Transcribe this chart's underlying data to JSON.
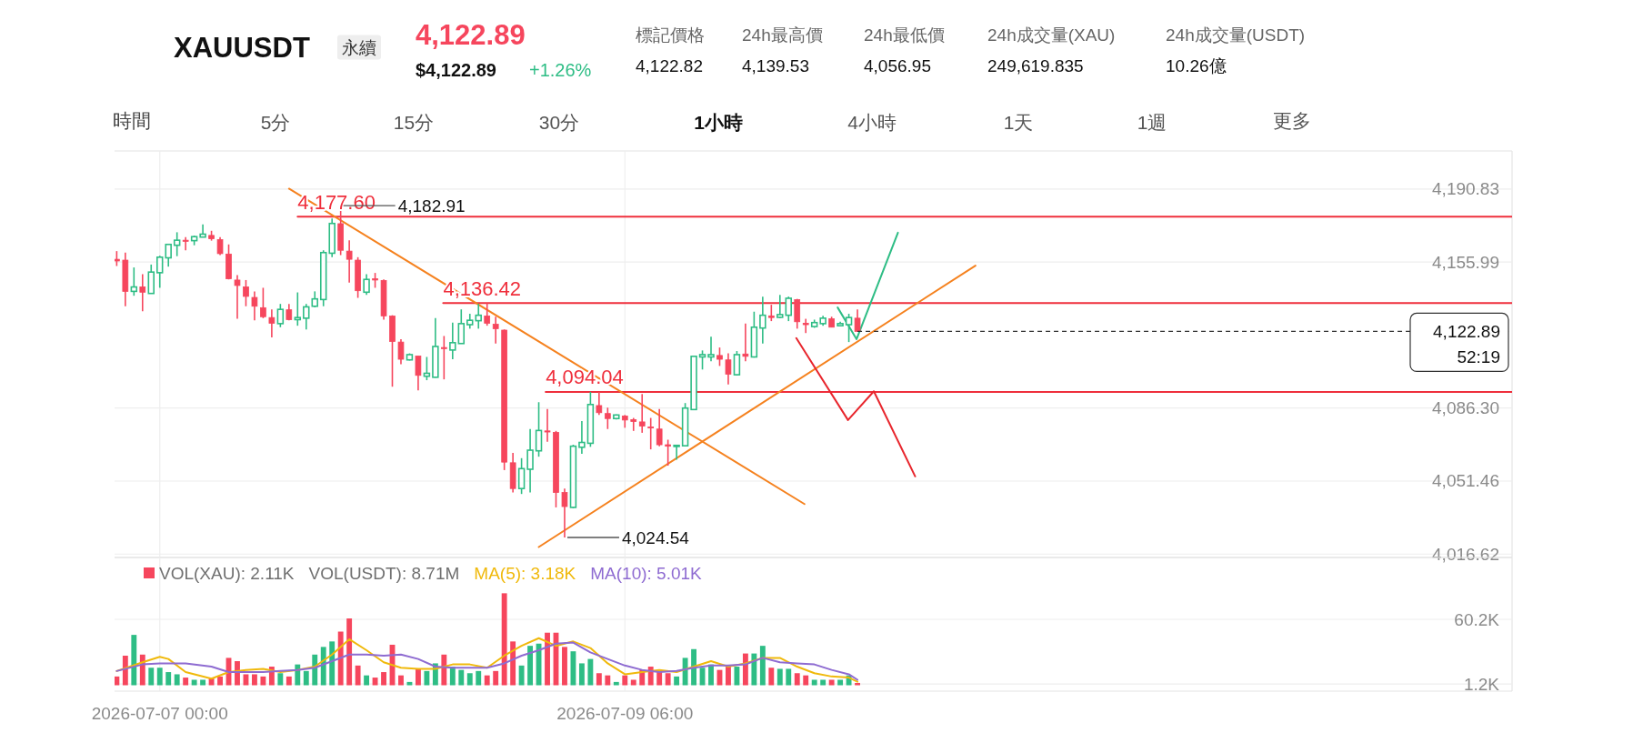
{
  "chart_data": [
    {
      "type": "candlestick",
      "title": "XAUUSDT",
      "subtitle": "永續",
      "annotations": [
        "4,122.89",
        "$4,122.89",
        "+1.26%",
        "標記價格",
        "4,122.82",
        "24h最高價",
        "4,139.53",
        "24h最低價",
        "4,056.95",
        "24h成交量(XAU)",
        "249,619.835",
        "24h成交量(USDT)",
        "10.26億",
        "時間",
        "5分",
        "15分",
        "30分",
        "1小時",
        "4小時",
        "1天",
        "1週",
        "更多",
        {
          "text": "4,177.60",
          "x": "2026-07-07T16:00",
          "y": 4177.6
        },
        {
          "text": "4,136.42",
          "x": "2026-07-08T08:54",
          "y": 4136.42
        },
        {
          "text": "4,094.04",
          "x": "2026-07-08T20:48",
          "y": 4094.04
        },
        {
          "text": "4,182.91",
          "x": "2026-07-07T21:00",
          "y": 4182.91
        },
        {
          "text": "4,024.54",
          "x": "2026-07-08T23:00",
          "y": 4024.54
        }
      ],
      "x": [
        "2026-07-06T19:00",
        "2026-07-06T20:00",
        "2026-07-06T21:00",
        "2026-07-06T22:00",
        "2026-07-06T23:00",
        "2026-07-07T00:00",
        "2026-07-07T01:00",
        "2026-07-07T02:00",
        "2026-07-07T03:00",
        "2026-07-07T04:00",
        "2026-07-07T05:00",
        "2026-07-07T06:00",
        "2026-07-07T07:00",
        "2026-07-07T08:00",
        "2026-07-07T09:00",
        "2026-07-07T10:00",
        "2026-07-07T11:00",
        "2026-07-07T12:00",
        "2026-07-07T13:00",
        "2026-07-07T14:00",
        "2026-07-07T15:00",
        "2026-07-07T16:00",
        "2026-07-07T17:00",
        "2026-07-07T18:00",
        "2026-07-07T19:00",
        "2026-07-07T20:00",
        "2026-07-07T21:00",
        "2026-07-07T22:00",
        "2026-07-07T23:00",
        "2026-07-08T00:00",
        "2026-07-08T01:00",
        "2026-07-08T02:00",
        "2026-07-08T03:00",
        "2026-07-08T04:00",
        "2026-07-08T05:00",
        "2026-07-08T06:00",
        "2026-07-08T07:00",
        "2026-07-08T08:00",
        "2026-07-08T09:00",
        "2026-07-08T10:00",
        "2026-07-08T11:00",
        "2026-07-08T12:00",
        "2026-07-08T13:00",
        "2026-07-08T14:00",
        "2026-07-08T15:00",
        "2026-07-08T16:00",
        "2026-07-08T17:00",
        "2026-07-08T18:00",
        "2026-07-08T19:00",
        "2026-07-08T20:00",
        "2026-07-08T21:00",
        "2026-07-08T22:00",
        "2026-07-08T23:00",
        "2026-07-09T00:00",
        "2026-07-09T01:00",
        "2026-07-09T02:00",
        "2026-07-09T03:00",
        "2026-07-09T04:00",
        "2026-07-09T05:00",
        "2026-07-09T06:00",
        "2026-07-09T07:00",
        "2026-07-09T08:00",
        "2026-07-09T09:00",
        "2026-07-09T10:00",
        "2026-07-09T11:00",
        "2026-07-09T12:00",
        "2026-07-09T13:00",
        "2026-07-09T14:00",
        "2026-07-09T15:00",
        "2026-07-09T16:00",
        "2026-07-09T17:00",
        "2026-07-09T18:00",
        "2026-07-09T19:00",
        "2026-07-09T20:00",
        "2026-07-09T21:00",
        "2026-07-09T22:00",
        "2026-07-09T23:00",
        "2026-07-10T00:00",
        "2026-07-10T01:00",
        "2026-07-10T02:00",
        "2026-07-10T03:00",
        "2026-07-10T04:00",
        "2026-07-10T05:00",
        "2026-07-10T06:00",
        "2026-07-10T07:00",
        "2026-07-10T08:00",
        "2026-07-10T09:00"
      ],
      "ohlc": [
        [
          4157.3,
          4161.2,
          4154.1,
          4156.5
        ],
        [
          4156.9,
          4160.5,
          4134.9,
          4142.0
        ],
        [
          4142.0,
          4153.4,
          4139.9,
          4144.1
        ],
        [
          4144.1,
          4150.2,
          4132.5,
          4141.6
        ],
        [
          4141.0,
          4154.8,
          4141.0,
          4151.2
        ],
        [
          4150.9,
          4159.0,
          4143.7,
          4158.3
        ],
        [
          4158.0,
          4164.4,
          4153.8,
          4164.4
        ],
        [
          4164.0,
          4170.2,
          4158.8,
          4166.4
        ],
        [
          4166.4,
          4167.9,
          4161.6,
          4165.9
        ],
        [
          4166.2,
          4168.6,
          4164.0,
          4168.1
        ],
        [
          4167.9,
          4174.0,
          4167.9,
          4169.3
        ],
        [
          4168.7,
          4170.9,
          4166.2,
          4167.1
        ],
        [
          4166.7,
          4167.9,
          4159.3,
          4160.0
        ],
        [
          4159.8,
          4164.4,
          4147.7,
          4148.0
        ],
        [
          4147.4,
          4149.8,
          4128.9,
          4144.8
        ],
        [
          4144.1,
          4147.4,
          4134.9,
          4139.6
        ],
        [
          4139.1,
          4142.0,
          4128.2,
          4134.9
        ],
        [
          4134.2,
          4143.7,
          4129.2,
          4129.9
        ],
        [
          4129.5,
          4133.4,
          4120.0,
          4126.8
        ],
        [
          4126.6,
          4136.0,
          4124.9,
          4133.4
        ],
        [
          4133.2,
          4136.0,
          4128.2,
          4128.5
        ],
        [
          4128.5,
          4141.5,
          4125.6,
          4129.5
        ],
        [
          4129.2,
          4136.0,
          4123.8,
          4134.6
        ],
        [
          4134.9,
          4142.0,
          4134.4,
          4138.4
        ],
        [
          4138.1,
          4161.6,
          4134.9,
          4160.5
        ],
        [
          4160.2,
          4176.8,
          4158.3,
          4174.4
        ],
        [
          4174.3,
          4182.91,
          4159.3,
          4161.6
        ],
        [
          4161.2,
          4166.4,
          4146.2,
          4157.3
        ],
        [
          4156.9,
          4158.3,
          4138.9,
          4142.3
        ],
        [
          4141.6,
          4150.2,
          4140.3,
          4147.7
        ],
        [
          4148.0,
          4150.8,
          4143.7,
          4147.4
        ],
        [
          4147.2,
          4147.7,
          4128.5,
          4130.3
        ],
        [
          4130.2,
          4130.6,
          4096.5,
          4118.1
        ],
        [
          4117.8,
          4119.2,
          4107.2,
          4109.6
        ],
        [
          4109.3,
          4112.4,
          4109.0,
          4111.8
        ],
        [
          4111.1,
          4111.1,
          4094.8,
          4101.9
        ],
        [
          4101.5,
          4110.7,
          4099.6,
          4102.9
        ],
        [
          4101.0,
          4129.2,
          4100.8,
          4115.7
        ],
        [
          4115.2,
          4120.7,
          4100.0,
          4114.7
        ],
        [
          4114.0,
          4127.1,
          4109.6,
          4117.5
        ],
        [
          4117.1,
          4133.4,
          4117.1,
          4126.6
        ],
        [
          4126.1,
          4131.3,
          4124.2,
          4128.2
        ],
        [
          4128.0,
          4136.0,
          4124.2,
          4130.6
        ],
        [
          4130.2,
          4136.42,
          4125.6,
          4126.8
        ],
        [
          4126.3,
          4129.9,
          4117.1,
          4124.2
        ],
        [
          4123.5,
          4123.8,
          4056.7,
          4060.5
        ],
        [
          4060.2,
          4064.9,
          4046.0,
          4047.9
        ],
        [
          4047.9,
          4062.4,
          4045.3,
          4057.4
        ],
        [
          4057.1,
          4076.3,
          4046.0,
          4066.2
        ],
        [
          4065.9,
          4089.1,
          4063.1,
          4075.6
        ],
        [
          4075.4,
          4085.8,
          4070.2,
          4074.9
        ],
        [
          4074.7,
          4075.4,
          4038.9,
          4046.0
        ],
        [
          4046.0,
          4047.9,
          4024.54,
          4039.3
        ],
        [
          4038.9,
          4068.8,
          4038.5,
          4068.1
        ],
        [
          4067.6,
          4080.1,
          4064.5,
          4069.9
        ],
        [
          4069.5,
          4094.04,
          4067.8,
          4088.0
        ],
        [
          4087.5,
          4094.0,
          4083.0,
          4084.1
        ],
        [
          4083.7,
          4086.5,
          4076.3,
          4081.3
        ],
        [
          4081.3,
          4083.3,
          4080.9,
          4083.0
        ],
        [
          4082.5,
          4083.0,
          4076.9,
          4080.6
        ],
        [
          4080.8,
          4081.6,
          4075.4,
          4079.9
        ],
        [
          4079.7,
          4093.0,
          4074.5,
          4077.7
        ],
        [
          4077.3,
          4081.6,
          4066.6,
          4076.9
        ],
        [
          4076.3,
          4085.8,
          4068.1,
          4068.8
        ],
        [
          4068.8,
          4071.2,
          4058.8,
          4068.1
        ],
        [
          4068.3,
          4068.8,
          4061.7,
          4068.5
        ],
        [
          4068.3,
          4088.7,
          4068.3,
          4086.3
        ],
        [
          4085.6,
          4111.4,
          4085.6,
          4111.0
        ],
        [
          4110.7,
          4113.8,
          4104.7,
          4111.8
        ],
        [
          4110.7,
          4120.4,
          4108.6,
          4111.8
        ],
        [
          4111.4,
          4115.2,
          4106.4,
          4109.6
        ],
        [
          4109.3,
          4112.4,
          4097.6,
          4102.5
        ],
        [
          4102.2,
          4113.5,
          4101.9,
          4111.8
        ],
        [
          4112.1,
          4126.6,
          4108.6,
          4111.0
        ],
        [
          4110.7,
          4132.3,
          4110.4,
          4124.9
        ],
        [
          4124.5,
          4139.4,
          4117.1,
          4130.6
        ],
        [
          4130.3,
          4135.6,
          4127.8,
          4129.5
        ],
        [
          4129.6,
          4140.3,
          4129.2,
          4130.9
        ],
        [
          4130.6,
          4139.5,
          4127.8,
          4138.7
        ],
        [
          4138.0,
          4138.4,
          4124.2,
          4127.5
        ],
        [
          4126.8,
          4128.9,
          4122.1,
          4126.1
        ],
        [
          4125.2,
          4128.5,
          4124.6,
          4127.1
        ],
        [
          4126.6,
          4130.3,
          4125.6,
          4129.2
        ],
        [
          4128.9,
          4129.9,
          4124.9,
          4124.9
        ],
        [
          4125.6,
          4127.5,
          4125.4,
          4126.6
        ],
        [
          4126.1,
          4131.3,
          4117.8,
          4129.5
        ],
        [
          4129.2,
          4133.4,
          4122.8,
          4122.89
        ]
      ],
      "colors": [
        "#f6465d",
        "#f6465d",
        "#2ebd85",
        "#f6465d",
        "#2ebd85",
        "#2ebd85",
        "#2ebd85",
        "#2ebd85",
        "#f6465d",
        "#2ebd85",
        "#2ebd85",
        "#f6465d",
        "#f6465d",
        "#f6465d",
        "#f6465d",
        "#f6465d",
        "#f6465d",
        "#f6465d",
        "#f6465d",
        "#2ebd85",
        "#f6465d",
        "#2ebd85",
        "#2ebd85",
        "#2ebd85",
        "#2ebd85",
        "#2ebd85",
        "#f6465d",
        "#f6465d",
        "#f6465d",
        "#2ebd85",
        "#f6465d",
        "#f6465d",
        "#f6465d",
        "#f6465d",
        "#2ebd85",
        "#f6465d",
        "#2ebd85",
        "#2ebd85",
        "#f6465d",
        "#2ebd85",
        "#2ebd85",
        "#2ebd85",
        "#2ebd85",
        "#f6465d",
        "#f6465d",
        "#f6465d",
        "#f6465d",
        "#2ebd85",
        "#2ebd85",
        "#2ebd85",
        "#f6465d",
        "#f6465d",
        "#f6465d",
        "#2ebd85",
        "#2ebd85",
        "#2ebd85",
        "#f6465d",
        "#f6465d",
        "#2ebd85",
        "#f6465d",
        "#f6465d",
        "#f6465d",
        "#f6465d",
        "#f6465d",
        "#f6465d",
        "#2ebd85",
        "#2ebd85",
        "#2ebd85",
        "#2ebd85",
        "#2ebd85",
        "#f6465d",
        "#f6465d",
        "#2ebd85",
        "#f6465d",
        "#2ebd85",
        "#2ebd85",
        "#f6465d",
        "#2ebd85",
        "#2ebd85",
        "#f6465d",
        "#f6465d",
        "#2ebd85",
        "#2ebd85",
        "#f6465d",
        "#2ebd85",
        "#2ebd85",
        "#f6465d"
      ],
      "series": [
        {
          "type": "line",
          "color": "#ef2f3c",
          "x": [
            "2026-07-07T16:00",
            "2026-07-13T13:00"
          ],
          "values": [
            4177.6,
            4177.6
          ]
        },
        {
          "type": "line",
          "color": "#ef2f3c",
          "x": [
            "2026-07-08T08:54",
            "2026-07-13T13:00"
          ],
          "values": [
            4136.42,
            4136.42
          ]
        },
        {
          "type": "line",
          "color": "#ef2f3c",
          "x": [
            "2026-07-08T20:48",
            "2026-07-13T13:00"
          ],
          "values": [
            4094.04,
            4094.04
          ]
        },
        {
          "type": "line",
          "color": "#f5821f",
          "x": [
            "2026-07-07T15:00",
            "2026-07-10T02:51"
          ],
          "values": [
            4191.0,
            4040.5
          ]
        },
        {
          "type": "line",
          "color": "#f5821f",
          "x": [
            "2026-07-08T20:00",
            "2026-07-10T22:42"
          ],
          "values": [
            4020.0,
            4154.3
          ]
        },
        {
          "type": "line",
          "color": "#e8262d",
          "x": [
            "2026-07-10T01:54",
            "2026-07-10T07:54",
            "2026-07-10T10:54",
            "2026-07-10T15:42"
          ],
          "values": [
            4119.7,
            4080.6,
            4094.3,
            4053.7
          ]
        },
        {
          "type": "line",
          "color": "#2ebd85",
          "x": [
            "2026-07-10T06:42",
            "2026-07-10T08:54",
            "2026-07-10T13:42"
          ],
          "values": [
            4134.3,
            4119.2,
            4170.0
          ]
        }
      ],
      "ref_lines": [
        {
          "axis": "y",
          "value": 4122.89,
          "label": "4,122.89\n52:19",
          "color": "#333333",
          "line_style": "dashed"
        }
      ],
      "xlim": [
        "2026-07-06T18:45",
        "2026-07-13T13:00"
      ],
      "xticks": [
        {
          "value": "2026-07-07T00:00",
          "label": null
        },
        {
          "value": "2026-07-09T06:00",
          "label": null
        }
      ],
      "ylim": [
        4015,
        4209
      ],
      "yticks": [
        {
          "value": 4016.62,
          "label": "4,016.62"
        },
        {
          "value": 4051.46,
          "label": "4,051.46"
        },
        {
          "value": 4086.3,
          "label": "4,086.30"
        },
        {
          "value": 4155.99,
          "label": "4,155.99"
        },
        {
          "value": 4190.83,
          "label": "4,190.83"
        }
      ],
      "tick_labels": "y",
      "grid": true
    },
    {
      "type": "bar",
      "annotations": [
        "VOL(USDT): 8.71M"
      ],
      "legend": "top left",
      "grid": true,
      "x": [
        "2026-07-06T19:00",
        "2026-07-06T20:00",
        "2026-07-06T21:00",
        "2026-07-06T22:00",
        "2026-07-06T23:00",
        "2026-07-07T00:00",
        "2026-07-07T01:00",
        "2026-07-07T02:00",
        "2026-07-07T03:00",
        "2026-07-07T04:00",
        "2026-07-07T05:00",
        "2026-07-07T06:00",
        "2026-07-07T07:00",
        "2026-07-07T08:00",
        "2026-07-07T09:00",
        "2026-07-07T10:00",
        "2026-07-07T11:00",
        "2026-07-07T12:00",
        "2026-07-07T13:00",
        "2026-07-07T14:00",
        "2026-07-07T15:00",
        "2026-07-07T16:00",
        "2026-07-07T17:00",
        "2026-07-07T18:00",
        "2026-07-07T19:00",
        "2026-07-07T20:00",
        "2026-07-07T21:00",
        "2026-07-07T22:00",
        "2026-07-07T23:00",
        "2026-07-08T00:00",
        "2026-07-08T01:00",
        "2026-07-08T02:00",
        "2026-07-08T03:00",
        "2026-07-08T04:00",
        "2026-07-08T05:00",
        "2026-07-08T06:00",
        "2026-07-08T07:00",
        "2026-07-08T08:00",
        "2026-07-08T09:00",
        "2026-07-08T10:00",
        "2026-07-08T11:00",
        "2026-07-08T12:00",
        "2026-07-08T13:00",
        "2026-07-08T14:00",
        "2026-07-08T15:00",
        "2026-07-08T16:00",
        "2026-07-08T17:00",
        "2026-07-08T18:00",
        "2026-07-08T19:00",
        "2026-07-08T20:00",
        "2026-07-08T21:00",
        "2026-07-08T22:00",
        "2026-07-08T23:00",
        "2026-07-09T00:00",
        "2026-07-09T01:00",
        "2026-07-09T02:00",
        "2026-07-09T03:00",
        "2026-07-09T04:00",
        "2026-07-09T05:00",
        "2026-07-09T06:00",
        "2026-07-09T07:00",
        "2026-07-09T08:00",
        "2026-07-09T09:00",
        "2026-07-09T10:00",
        "2026-07-09T11:00",
        "2026-07-09T12:00",
        "2026-07-09T13:00",
        "2026-07-09T14:00",
        "2026-07-09T15:00",
        "2026-07-09T16:00",
        "2026-07-09T17:00",
        "2026-07-09T18:00",
        "2026-07-09T19:00",
        "2026-07-09T20:00",
        "2026-07-09T21:00",
        "2026-07-09T22:00",
        "2026-07-09T23:00",
        "2026-07-10T00:00",
        "2026-07-10T01:00",
        "2026-07-10T02:00",
        "2026-07-10T03:00",
        "2026-07-10T04:00",
        "2026-07-10T05:00",
        "2026-07-10T06:00",
        "2026-07-10T07:00",
        "2026-07-10T08:00",
        "2026-07-10T09:00"
      ],
      "series": [
        {
          "name": "VOL(XAU): 2.11K",
          "values": [
            8,
            27,
            46,
            28,
            16,
            16,
            12,
            10,
            7,
            5,
            5,
            7,
            8,
            25,
            22,
            10,
            10,
            8,
            17,
            11,
            8,
            19,
            13,
            28,
            35,
            40,
            49,
            61,
            18,
            9,
            7,
            12,
            37,
            9,
            3,
            15,
            13,
            20,
            28,
            17,
            14,
            11,
            13,
            9,
            13,
            84,
            40,
            18,
            36,
            38,
            48,
            48,
            35,
            31,
            20,
            24,
            11,
            9,
            3,
            9,
            5,
            14,
            17,
            12,
            11,
            8,
            25,
            33,
            16,
            19,
            14,
            17,
            17,
            29,
            29,
            36,
            16,
            15,
            15,
            11,
            9,
            5,
            5,
            5,
            5,
            9,
            2.11
          ],
          "colors": [
            "#f6465d",
            "#f6465d",
            "#2ebd85",
            "#f6465d",
            "#2ebd85",
            "#2ebd85",
            "#2ebd85",
            "#2ebd85",
            "#f6465d",
            "#2ebd85",
            "#2ebd85",
            "#f6465d",
            "#f6465d",
            "#f6465d",
            "#f6465d",
            "#f6465d",
            "#f6465d",
            "#f6465d",
            "#f6465d",
            "#2ebd85",
            "#f6465d",
            "#2ebd85",
            "#2ebd85",
            "#2ebd85",
            "#2ebd85",
            "#2ebd85",
            "#f6465d",
            "#f6465d",
            "#f6465d",
            "#2ebd85",
            "#f6465d",
            "#f6465d",
            "#f6465d",
            "#f6465d",
            "#2ebd85",
            "#f6465d",
            "#2ebd85",
            "#2ebd85",
            "#f6465d",
            "#2ebd85",
            "#2ebd85",
            "#2ebd85",
            "#2ebd85",
            "#f6465d",
            "#f6465d",
            "#f6465d",
            "#f6465d",
            "#2ebd85",
            "#2ebd85",
            "#2ebd85",
            "#f6465d",
            "#f6465d",
            "#f6465d",
            "#2ebd85",
            "#2ebd85",
            "#2ebd85",
            "#f6465d",
            "#f6465d",
            "#2ebd85",
            "#f6465d",
            "#f6465d",
            "#f6465d",
            "#f6465d",
            "#f6465d",
            "#f6465d",
            "#2ebd85",
            "#2ebd85",
            "#2ebd85",
            "#2ebd85",
            "#2ebd85",
            "#f6465d",
            "#f6465d",
            "#2ebd85",
            "#f6465d",
            "#2ebd85",
            "#2ebd85",
            "#f6465d",
            "#2ebd85",
            "#2ebd85",
            "#f6465d",
            "#f6465d",
            "#2ebd85",
            "#2ebd85",
            "#f6465d",
            "#2ebd85",
            "#2ebd85",
            "#f6465d"
          ]
        },
        {
          "type": "line",
          "name": "MA(5): 3.18K",
          "color": "#f0b90b",
          "x": [
            "2026-07-06T19:00",
            "2026-07-06T22:00",
            "2026-07-07T00:00",
            "2026-07-07T01:00",
            "2026-07-07T03:00",
            "2026-07-07T06:00",
            "2026-07-07T08:00",
            "2026-07-07T10:00",
            "2026-07-07T12:00",
            "2026-07-07T14:00",
            "2026-07-07T16:00",
            "2026-07-07T18:00",
            "2026-07-07T20:00",
            "2026-07-07T22:00",
            "2026-07-08T00:00",
            "2026-07-08T02:00",
            "2026-07-08T04:00",
            "2026-07-08T06:00",
            "2026-07-08T08:00",
            "2026-07-08T10:00",
            "2026-07-08T12:00",
            "2026-07-08T14:00",
            "2026-07-08T16:00",
            "2026-07-08T18:00",
            "2026-07-08T20:00",
            "2026-07-08T22:00",
            "2026-07-09T00:00",
            "2026-07-09T02:00",
            "2026-07-09T04:00",
            "2026-07-09T06:00",
            "2026-07-09T08:00",
            "2026-07-09T10:00",
            "2026-07-09T12:00",
            "2026-07-09T14:00",
            "2026-07-09T16:00",
            "2026-07-09T18:00",
            "2026-07-09T20:00",
            "2026-07-09T22:00",
            "2026-07-10T00:00",
            "2026-07-10T02:00",
            "2026-07-10T04:00",
            "2026-07-10T06:00",
            "2026-07-10T08:00",
            "2026-07-10T09:00"
          ],
          "values": [
            13,
            21,
            26,
            24,
            12,
            6,
            12,
            14,
            15,
            12,
            14,
            17,
            28,
            42,
            32,
            21,
            16,
            15,
            15,
            19,
            19,
            16,
            27,
            36,
            43,
            36,
            40,
            34,
            20,
            10,
            12,
            14,
            12,
            17,
            22,
            17,
            20,
            25,
            25,
            17,
            11,
            8,
            7,
            3.18
          ]
        },
        {
          "type": "line",
          "name": "MA(10): 5.01K",
          "color": "#8e6bd1",
          "x": [
            "2026-07-06T19:00",
            "2026-07-06T22:00",
            "2026-07-07T00:00",
            "2026-07-07T03:00",
            "2026-07-07T06:00",
            "2026-07-07T08:00",
            "2026-07-07T10:00",
            "2026-07-07T12:00",
            "2026-07-07T14:00",
            "2026-07-07T16:00",
            "2026-07-07T18:00",
            "2026-07-07T20:00",
            "2026-07-07T22:00",
            "2026-07-08T00:00",
            "2026-07-08T02:00",
            "2026-07-08T04:00",
            "2026-07-08T06:00",
            "2026-07-08T08:00",
            "2026-07-08T10:00",
            "2026-07-08T12:00",
            "2026-07-08T14:00",
            "2026-07-08T16:00",
            "2026-07-08T18:00",
            "2026-07-08T20:00",
            "2026-07-08T22:00",
            "2026-07-09T00:00",
            "2026-07-09T02:00",
            "2026-07-09T04:00",
            "2026-07-09T06:00",
            "2026-07-09T08:00",
            "2026-07-09T10:00",
            "2026-07-09T12:00",
            "2026-07-09T14:00",
            "2026-07-09T16:00",
            "2026-07-09T18:00",
            "2026-07-09T20:00",
            "2026-07-09T22:00",
            "2026-07-10T00:00",
            "2026-07-10T02:00",
            "2026-07-10T04:00",
            "2026-07-10T06:00",
            "2026-07-10T08:00",
            "2026-07-10T09:00"
          ],
          "values": [
            13,
            19,
            20,
            20,
            17,
            12,
            12,
            12,
            13,
            14,
            16,
            22,
            28,
            28,
            27,
            28,
            24,
            17,
            16,
            16,
            16,
            20,
            27,
            32,
            38,
            39,
            30,
            24,
            18,
            14,
            12,
            13,
            16,
            18,
            18,
            19,
            25,
            21,
            20,
            19,
            14,
            10,
            5.01
          ]
        }
      ],
      "xlim": [
        "2026-07-06T18:45",
        "2026-07-13T13:00"
      ],
      "xticks": [
        {
          "value": "2026-07-07T00:00",
          "label": "2026-07-07 00:00"
        },
        {
          "value": "2026-07-09T06:00",
          "label": "2026-07-09 06:00"
        }
      ],
      "ylim": [
        -5.4,
        116.7
      ],
      "yticks": [
        {
          "value": 1.2,
          "label": "1.2K"
        },
        {
          "value": 60.2,
          "label": "60.2K"
        }
      ]
    }
  ]
}
